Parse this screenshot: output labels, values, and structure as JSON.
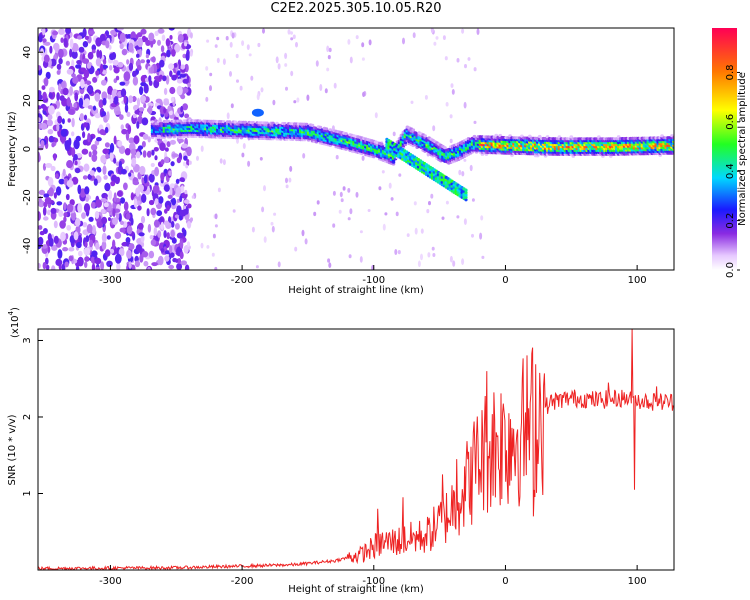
{
  "title": "C2E2.2025.305.10.05.R20",
  "chart_data": [
    {
      "type": "heatmap",
      "name": "spectrogram",
      "xlabel": "Height of straight line (km)",
      "ylabel": "Frequency (Hz)",
      "xlim": [
        -355,
        128
      ],
      "ylim": [
        -50,
        50
      ],
      "xticks": [
        -300,
        -200,
        -100,
        0,
        100
      ],
      "xtick_labels": [
        "-300",
        "-200",
        "-100",
        "0",
        "100"
      ],
      "yticks": [
        -40,
        -20,
        0,
        20,
        40
      ],
      "ytick_labels": [
        "-40",
        "-20",
        "0",
        "20",
        "40"
      ],
      "colorbar": {
        "label": "Normalized spectral amplitude",
        "range": [
          0,
          0.98
        ],
        "ticks": [
          0,
          0.2,
          0.4,
          0.6,
          0.8
        ],
        "tick_labels": [
          "0.0",
          "0.2",
          "0.4",
          "0.6",
          "0.8"
        ]
      },
      "ridge": [
        {
          "x": -265,
          "f": 8
        },
        {
          "x": -240,
          "f": 8.5
        },
        {
          "x": -210,
          "f": 8
        },
        {
          "x": -180,
          "f": 7.5
        },
        {
          "x": -150,
          "f": 7
        },
        {
          "x": -135,
          "f": 5
        },
        {
          "x": -120,
          "f": 3
        },
        {
          "x": -100,
          "f": 0
        },
        {
          "x": -85,
          "f": -3
        },
        {
          "x": -75,
          "f": 6
        },
        {
          "x": -60,
          "f": 2
        },
        {
          "x": -45,
          "f": -3
        },
        {
          "x": -35,
          "f": -1
        },
        {
          "x": -25,
          "f": 2
        },
        {
          "x": 0,
          "f": 1.5
        },
        {
          "x": 40,
          "f": 1
        },
        {
          "x": 80,
          "f": 1
        },
        {
          "x": 128,
          "f": 1.5
        }
      ]
    },
    {
      "type": "line",
      "name": "snr",
      "xlabel": "Height of straight line (km)",
      "ylabel": "SNR (10 * v/v)",
      "y_multiplier": "(x10",
      "y_multiplier_exp": "4",
      "xlim": [
        -355,
        128
      ],
      "ylim": [
        0,
        3.15
      ],
      "xticks": [
        -300,
        -200,
        -100,
        0,
        100
      ],
      "xtick_labels": [
        "-300",
        "-200",
        "-100",
        "0",
        "100"
      ],
      "yticks": [
        1,
        2,
        3
      ],
      "ytick_labels": [
        "1",
        "2",
        "3"
      ],
      "color": "#ee2222",
      "trend": [
        {
          "x": -355,
          "y": 0.02
        },
        {
          "x": -250,
          "y": 0.03
        },
        {
          "x": -200,
          "y": 0.05
        },
        {
          "x": -160,
          "y": 0.07
        },
        {
          "x": -130,
          "y": 0.12
        },
        {
          "x": -110,
          "y": 0.2
        },
        {
          "x": -95,
          "y": 0.35
        },
        {
          "x": -80,
          "y": 0.38
        },
        {
          "x": -60,
          "y": 0.45
        },
        {
          "x": -45,
          "y": 0.7
        },
        {
          "x": -30,
          "y": 1.1
        },
        {
          "x": -20,
          "y": 1.45
        },
        {
          "x": -10,
          "y": 1.65
        },
        {
          "x": 0,
          "y": 1.7
        },
        {
          "x": 15,
          "y": 1.85
        },
        {
          "x": 25,
          "y": 2.05
        },
        {
          "x": 35,
          "y": 2.2
        },
        {
          "x": 50,
          "y": 2.25
        },
        {
          "x": 70,
          "y": 2.22
        },
        {
          "x": 90,
          "y": 2.25
        },
        {
          "x": 110,
          "y": 2.2
        },
        {
          "x": 128,
          "y": 2.2
        }
      ],
      "spikes": [
        {
          "x": -14,
          "y": 2.6
        },
        {
          "x": -22,
          "y": 1.75
        },
        {
          "x": -2,
          "y": 2.05
        },
        {
          "x": 13,
          "y": 2.5
        },
        {
          "x": 21,
          "y": 0.7
        },
        {
          "x": 96,
          "y": 3.15
        },
        {
          "x": 98,
          "y": 1.05
        },
        {
          "x": 78,
          "y": 2.45
        },
        {
          "x": 115,
          "y": 2.4
        },
        {
          "x": -37,
          "y": 1.45
        },
        {
          "x": -48,
          "y": 1.25
        },
        {
          "x": -78,
          "y": 0.95
        },
        {
          "x": -97,
          "y": 0.8
        }
      ]
    }
  ]
}
